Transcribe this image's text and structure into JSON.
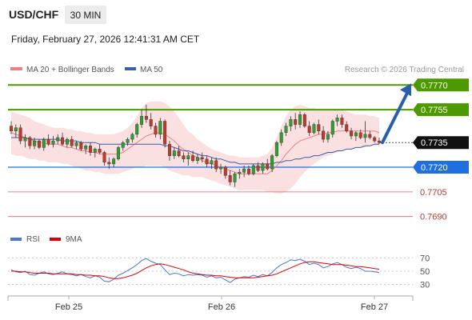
{
  "header": {
    "symbol": "USD/CHF",
    "timeframe": "30 MIN",
    "datetime": "Friday, February 27, 2026 12:41:31 AM CET"
  },
  "legend": {
    "ma20": "MA 20 + Bollinger Bands",
    "ma50": "MA 50",
    "credit": "Research © 2026 Trading Central"
  },
  "rsi_legend": {
    "rsi": "RSI",
    "ma": "9MA"
  },
  "colors": {
    "up": "#2ea02e",
    "down": "#c0392b",
    "resistance": "#4c9a00",
    "support": "#1f6fe0",
    "level": "#e06060",
    "current": "#111111",
    "arrow": "#2a5ea8",
    "band_fill": "#fadadd",
    "ma20": "#f08080",
    "ma50": "#3b5ea8",
    "rsi": "#4a74d8",
    "rsi_ma": "#e00000"
  },
  "chart_data": [
    {
      "type": "candlestick",
      "ylim": [
        0.7684,
        0.7775
      ],
      "x_labels": [
        "Feb 25",
        "Feb 26",
        "Feb 27"
      ],
      "levels": [
        {
          "value": 0.777,
          "label": "0.7770",
          "kind": "resistance"
        },
        {
          "value": 0.7755,
          "label": "0.7755",
          "kind": "resistance"
        },
        {
          "value": 0.7735,
          "label": "0.7735",
          "kind": "current"
        },
        {
          "value": 0.772,
          "label": "0.7720",
          "kind": "support"
        },
        {
          "value": 0.7705,
          "label": "0.7705",
          "kind": "level"
        },
        {
          "value": 0.769,
          "label": "0.7690",
          "kind": "level"
        }
      ],
      "forecast": {
        "from": 0.7735,
        "to": 0.777
      },
      "candles": [
        [
          0.7745,
          0.7748,
          0.774,
          0.7742
        ],
        [
          0.7742,
          0.7746,
          0.7738,
          0.7744
        ],
        [
          0.7744,
          0.7746,
          0.7734,
          0.7736
        ],
        [
          0.7736,
          0.774,
          0.7732,
          0.7738
        ],
        [
          0.7738,
          0.7739,
          0.7731,
          0.7733
        ],
        [
          0.7733,
          0.7738,
          0.7731,
          0.7736
        ],
        [
          0.7736,
          0.7737,
          0.7731,
          0.7732
        ],
        [
          0.7732,
          0.7738,
          0.773,
          0.7737
        ],
        [
          0.7737,
          0.774,
          0.7733,
          0.7734
        ],
        [
          0.7734,
          0.7739,
          0.7732,
          0.7736
        ],
        [
          0.7736,
          0.774,
          0.7734,
          0.7738
        ],
        [
          0.7738,
          0.7741,
          0.7733,
          0.7734
        ],
        [
          0.7734,
          0.7738,
          0.7732,
          0.7737
        ],
        [
          0.7737,
          0.7739,
          0.7732,
          0.7733
        ],
        [
          0.7733,
          0.7736,
          0.7731,
          0.7735
        ],
        [
          0.7735,
          0.7736,
          0.773,
          0.7731
        ],
        [
          0.7731,
          0.7734,
          0.7728,
          0.7733
        ],
        [
          0.7733,
          0.7735,
          0.7727,
          0.7729
        ],
        [
          0.7729,
          0.7732,
          0.7726,
          0.7731
        ],
        [
          0.7731,
          0.7734,
          0.7728,
          0.7729
        ],
        [
          0.7729,
          0.773,
          0.7721,
          0.7723
        ],
        [
          0.7723,
          0.7726,
          0.7719,
          0.7722
        ],
        [
          0.7722,
          0.7726,
          0.772,
          0.7725
        ],
        [
          0.7725,
          0.7733,
          0.7724,
          0.7732
        ],
        [
          0.7732,
          0.7736,
          0.773,
          0.7735
        ],
        [
          0.7735,
          0.7738,
          0.7733,
          0.7737
        ],
        [
          0.7737,
          0.7741,
          0.7735,
          0.774
        ],
        [
          0.774,
          0.7747,
          0.7738,
          0.7746
        ],
        [
          0.7746,
          0.7755,
          0.7744,
          0.7751
        ],
        [
          0.7751,
          0.7758,
          0.7747,
          0.7749
        ],
        [
          0.7749,
          0.7753,
          0.7743,
          0.7745
        ],
        [
          0.7745,
          0.7747,
          0.7738,
          0.774
        ],
        [
          0.774,
          0.775,
          0.7737,
          0.7748
        ],
        [
          0.7748,
          0.7749,
          0.7732,
          0.7734
        ],
        [
          0.7734,
          0.7736,
          0.7724,
          0.7727
        ],
        [
          0.7727,
          0.7732,
          0.7725,
          0.773
        ],
        [
          0.773,
          0.7733,
          0.7726,
          0.7727
        ],
        [
          0.7727,
          0.7729,
          0.7723,
          0.7725
        ],
        [
          0.7725,
          0.7729,
          0.7721,
          0.7727
        ],
        [
          0.7727,
          0.773,
          0.7723,
          0.7724
        ],
        [
          0.7724,
          0.7728,
          0.7722,
          0.7726
        ],
        [
          0.7726,
          0.7729,
          0.7723,
          0.7725
        ],
        [
          0.7725,
          0.7727,
          0.772,
          0.7722
        ],
        [
          0.7722,
          0.7726,
          0.7719,
          0.7724
        ],
        [
          0.7724,
          0.7726,
          0.7717,
          0.7719
        ],
        [
          0.7719,
          0.7722,
          0.7716,
          0.772
        ],
        [
          0.772,
          0.7721,
          0.7713,
          0.7715
        ],
        [
          0.7715,
          0.7718,
          0.7709,
          0.7711
        ],
        [
          0.7711,
          0.7717,
          0.7708,
          0.7716
        ],
        [
          0.7716,
          0.7719,
          0.7713,
          0.7717
        ],
        [
          0.7717,
          0.7721,
          0.7714,
          0.7719
        ],
        [
          0.7719,
          0.7721,
          0.7715,
          0.7716
        ],
        [
          0.7716,
          0.7722,
          0.7715,
          0.7721
        ],
        [
          0.7721,
          0.7723,
          0.7717,
          0.7718
        ],
        [
          0.7718,
          0.7723,
          0.7716,
          0.7722
        ],
        [
          0.7722,
          0.7725,
          0.7718,
          0.7719
        ],
        [
          0.7719,
          0.7728,
          0.7717,
          0.7727
        ],
        [
          0.7727,
          0.7736,
          0.7726,
          0.7735
        ],
        [
          0.7735,
          0.7743,
          0.7733,
          0.7741
        ],
        [
          0.7741,
          0.7747,
          0.7739,
          0.7745
        ],
        [
          0.7745,
          0.7751,
          0.7742,
          0.7749
        ],
        [
          0.7749,
          0.7753,
          0.7743,
          0.7746
        ],
        [
          0.7746,
          0.7754,
          0.7744,
          0.7752
        ],
        [
          0.7752,
          0.7753,
          0.7744,
          0.7745
        ],
        [
          0.7745,
          0.7748,
          0.7739,
          0.7741
        ],
        [
          0.7741,
          0.7747,
          0.774,
          0.7746
        ],
        [
          0.7746,
          0.7749,
          0.774,
          0.7742
        ],
        [
          0.7742,
          0.7745,
          0.7735,
          0.7737
        ],
        [
          0.7737,
          0.7742,
          0.7735,
          0.774
        ],
        [
          0.774,
          0.7749,
          0.7738,
          0.7748
        ],
        [
          0.7748,
          0.7752,
          0.7745,
          0.775
        ],
        [
          0.775,
          0.7752,
          0.7744,
          0.7746
        ],
        [
          0.7746,
          0.7748,
          0.7741,
          0.7742
        ],
        [
          0.7742,
          0.7744,
          0.7737,
          0.7739
        ],
        [
          0.7739,
          0.7742,
          0.7736,
          0.7741
        ],
        [
          0.7741,
          0.7743,
          0.7737,
          0.7738
        ],
        [
          0.7738,
          0.7748,
          0.7735,
          0.774
        ],
        [
          0.774,
          0.7742,
          0.7737,
          0.7738
        ],
        [
          0.7738,
          0.7739,
          0.7735,
          0.7736
        ],
        [
          0.7736,
          0.7738,
          0.7734,
          0.7735
        ]
      ],
      "bb_upper": [
        0.7754,
        0.7753,
        0.7752,
        0.7751,
        0.775,
        0.7748,
        0.7747,
        0.7746,
        0.7745,
        0.7744,
        0.7744,
        0.7744,
        0.7743,
        0.7743,
        0.7742,
        0.7742,
        0.7741,
        0.7741,
        0.774,
        0.774,
        0.774,
        0.774,
        0.774,
        0.7741,
        0.7742,
        0.7744,
        0.7747,
        0.7751,
        0.7756,
        0.7759,
        0.776,
        0.776,
        0.776,
        0.7759,
        0.7757,
        0.7754,
        0.775,
        0.7746,
        0.7742,
        0.774,
        0.7737,
        0.7735,
        0.7733,
        0.7731,
        0.773,
        0.7729,
        0.7728,
        0.7727,
        0.7727,
        0.7726,
        0.7726,
        0.7726,
        0.7726,
        0.7726,
        0.7727,
        0.7728,
        0.7732,
        0.7738,
        0.7745,
        0.7751,
        0.7755,
        0.7757,
        0.7758,
        0.7757,
        0.7756,
        0.7756,
        0.7755,
        0.7755,
        0.7755,
        0.7755,
        0.7755,
        0.7755,
        0.7754,
        0.7753,
        0.7752,
        0.7752,
        0.7752,
        0.7751,
        0.7751,
        0.775
      ],
      "bb_lower": [
        0.7728,
        0.7727,
        0.7727,
        0.7726,
        0.7725,
        0.7725,
        0.7724,
        0.7724,
        0.7723,
        0.7723,
        0.7723,
        0.7722,
        0.7722,
        0.7721,
        0.772,
        0.7719,
        0.7718,
        0.7718,
        0.7717,
        0.7717,
        0.7716,
        0.7716,
        0.7716,
        0.7716,
        0.7717,
        0.7718,
        0.7719,
        0.772,
        0.772,
        0.7721,
        0.7721,
        0.7721,
        0.7721,
        0.772,
        0.7718,
        0.7717,
        0.7716,
        0.7715,
        0.7715,
        0.7714,
        0.7714,
        0.7714,
        0.7713,
        0.7712,
        0.7711,
        0.771,
        0.7709,
        0.7708,
        0.7707,
        0.7706,
        0.7706,
        0.7706,
        0.7706,
        0.7706,
        0.7706,
        0.7705,
        0.7705,
        0.7704,
        0.7704,
        0.7705,
        0.7707,
        0.771,
        0.7714,
        0.7717,
        0.772,
        0.7722,
        0.7724,
        0.7726,
        0.7727,
        0.7728,
        0.7729,
        0.773,
        0.7731,
        0.7731,
        0.7732,
        0.7732,
        0.7732,
        0.7733,
        0.7733,
        0.7733
      ],
      "ma20": [
        0.7741,
        0.774,
        0.7739,
        0.7738,
        0.7737,
        0.7736,
        0.7735,
        0.7735,
        0.7734,
        0.7734,
        0.7734,
        0.7733,
        0.7732,
        0.7732,
        0.7731,
        0.773,
        0.773,
        0.7729,
        0.7729,
        0.7728,
        0.7728,
        0.7728,
        0.7728,
        0.7728,
        0.7729,
        0.7731,
        0.7733,
        0.7735,
        0.7737,
        0.7739,
        0.774,
        0.7741,
        0.7741,
        0.774,
        0.7738,
        0.7736,
        0.7733,
        0.7731,
        0.7729,
        0.7727,
        0.7726,
        0.7724,
        0.7723,
        0.7722,
        0.7721,
        0.772,
        0.7719,
        0.7718,
        0.7717,
        0.7716,
        0.7716,
        0.7716,
        0.7716,
        0.7716,
        0.7716,
        0.7716,
        0.7718,
        0.7721,
        0.7724,
        0.7728,
        0.7731,
        0.7734,
        0.7736,
        0.7737,
        0.7738,
        0.7739,
        0.774,
        0.774,
        0.7741,
        0.7741,
        0.7742,
        0.7742,
        0.7742,
        0.7742,
        0.7742,
        0.7742,
        0.7742,
        0.7742,
        0.7742,
        0.7741
      ],
      "ma50": [
        0.7738,
        0.7738,
        0.7738,
        0.7738,
        0.7737,
        0.7737,
        0.7737,
        0.7737,
        0.7737,
        0.7737,
        0.7737,
        0.7736,
        0.7736,
        0.7736,
        0.7736,
        0.7735,
        0.7735,
        0.7735,
        0.7735,
        0.7734,
        0.7734,
        0.7734,
        0.7734,
        0.7734,
        0.7734,
        0.7734,
        0.7734,
        0.7734,
        0.7734,
        0.7734,
        0.7734,
        0.7734,
        0.7734,
        0.7733,
        0.7733,
        0.7732,
        0.7731,
        0.773,
        0.773,
        0.7729,
        0.7728,
        0.7727,
        0.7727,
        0.7726,
        0.7725,
        0.7725,
        0.7724,
        0.7723,
        0.7723,
        0.7722,
        0.7722,
        0.7722,
        0.7722,
        0.7722,
        0.7722,
        0.7722,
        0.7722,
        0.7723,
        0.7723,
        0.7724,
        0.7724,
        0.7725,
        0.7725,
        0.7726,
        0.7726,
        0.7727,
        0.7727,
        0.7728,
        0.7729,
        0.7729,
        0.773,
        0.773,
        0.7731,
        0.7731,
        0.7732,
        0.7732,
        0.7733,
        0.7733,
        0.7734,
        0.7734
      ]
    },
    {
      "type": "line",
      "name": "RSI",
      "ylim": [
        20,
        80
      ],
      "y_ticks": [
        70,
        50,
        30
      ],
      "rsi": [
        52,
        49,
        48,
        50,
        45,
        44,
        47,
        49,
        46,
        45,
        47,
        49,
        46,
        45,
        43,
        45,
        42,
        40,
        43,
        41,
        35,
        34,
        38,
        44,
        47,
        51,
        55,
        60,
        66,
        69,
        65,
        62,
        60,
        52,
        45,
        47,
        46,
        43,
        45,
        44,
        45,
        44,
        41,
        43,
        40,
        41,
        37,
        33,
        38,
        40,
        42,
        41,
        44,
        42,
        45,
        43,
        48,
        55,
        60,
        63,
        67,
        66,
        68,
        65,
        60,
        62,
        60,
        55,
        57,
        61,
        63,
        60,
        56,
        54,
        56,
        54,
        50,
        50,
        49,
        48
      ],
      "rsi_ma": [
        50,
        50,
        49,
        49,
        48,
        47,
        47,
        47,
        47,
        46,
        46,
        46,
        46,
        46,
        45,
        45,
        44,
        44,
        43,
        43,
        42,
        40,
        39,
        39,
        40,
        42,
        44,
        47,
        51,
        55,
        58,
        60,
        61,
        60,
        58,
        56,
        54,
        52,
        49,
        47,
        46,
        45,
        44,
        44,
        43,
        43,
        42,
        41,
        40,
        40,
        40,
        40,
        40,
        41,
        42,
        43,
        44,
        46,
        49,
        52,
        55,
        58,
        61,
        63,
        64,
        64,
        63,
        62,
        61,
        60,
        60,
        60,
        59,
        58,
        57,
        57,
        56,
        55,
        54,
        53
      ]
    }
  ]
}
